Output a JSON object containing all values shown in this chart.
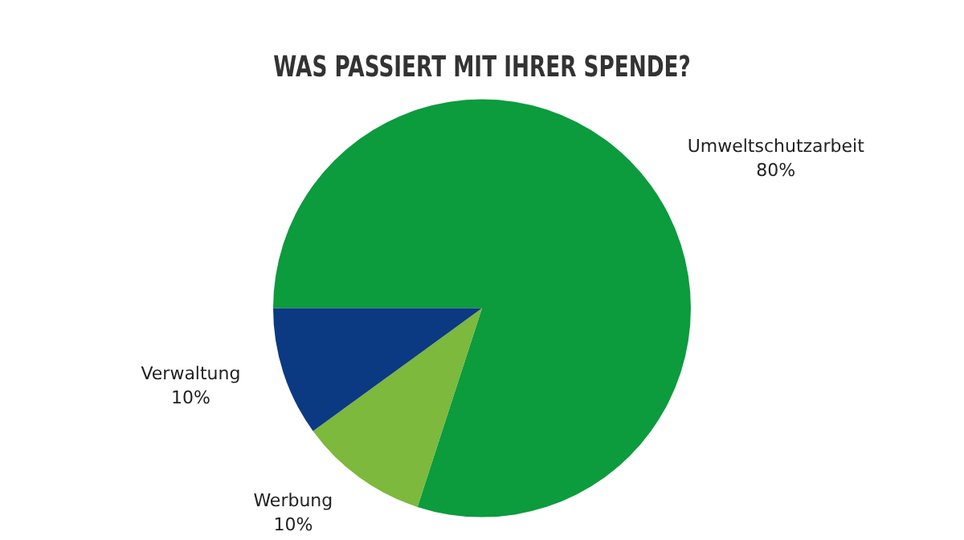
{
  "chart_data": {
    "type": "pie",
    "title": "WAS PASSIERT MIT IHRER SPENDE?",
    "categories": [
      "Umweltschutzarbeit",
      "Werbung",
      "Verwaltung"
    ],
    "values": [
      80,
      10,
      10
    ],
    "colors": [
      "#0c9b3d",
      "#7cb93c",
      "#0b3a82"
    ],
    "value_labels": [
      "80%",
      "10%",
      "10%"
    ],
    "legend": false
  }
}
